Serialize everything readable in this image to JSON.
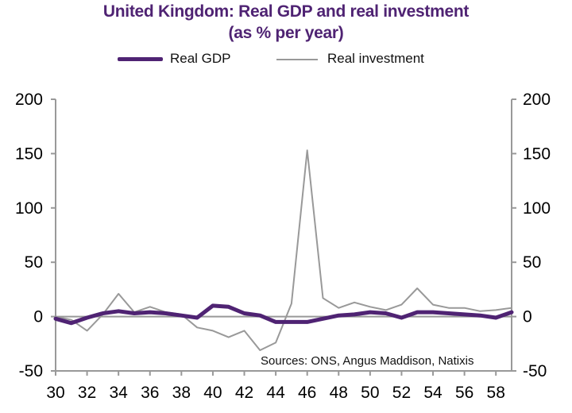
{
  "chart_data": {
    "type": "line",
    "title": "United Kingdom: Real GDP and real investment",
    "subtitle": "(as % per year)",
    "xlabel": "",
    "ylabel": "",
    "x": [
      30,
      31,
      32,
      33,
      34,
      35,
      36,
      37,
      38,
      39,
      40,
      41,
      42,
      43,
      44,
      45,
      46,
      47,
      48,
      49,
      50,
      51,
      52,
      53,
      54,
      55,
      56,
      57,
      58,
      59
    ],
    "x_tick_labels": [
      "30",
      "32",
      "34",
      "36",
      "38",
      "40",
      "42",
      "44",
      "46",
      "48",
      "50",
      "52",
      "54",
      "56",
      "58"
    ],
    "x_ticks": [
      30,
      32,
      34,
      36,
      38,
      40,
      42,
      44,
      46,
      48,
      50,
      52,
      54,
      56,
      58
    ],
    "xlim": [
      30,
      59
    ],
    "ylim": [
      -50,
      200
    ],
    "y_ticks": [
      -50,
      0,
      50,
      100,
      150,
      200
    ],
    "y_tick_labels": [
      "-50",
      "0",
      "50",
      "100",
      "150",
      "200"
    ],
    "right_ylim": [
      -50,
      200
    ],
    "grid": false,
    "legend_position": "top-center",
    "series": [
      {
        "name": "Real GDP",
        "color": "#4f2373",
        "values": [
          -2,
          -6,
          -1,
          3,
          5,
          3,
          4,
          3,
          1,
          -1,
          10,
          9,
          3,
          1,
          -5,
          -5,
          -5,
          -2,
          1,
          2,
          4,
          3,
          -1,
          4,
          4,
          3,
          2,
          1,
          -1,
          4
        ]
      },
      {
        "name": "Real investment",
        "color": "#999999",
        "values": [
          0,
          -3,
          -13,
          2,
          21,
          4,
          9,
          4,
          2,
          -10,
          -13,
          -19,
          -13,
          -31,
          -24,
          12,
          153,
          17,
          8,
          13,
          9,
          6,
          11,
          26,
          11,
          8,
          8,
          5,
          6,
          8
        ]
      }
    ],
    "annotation": "Sources:  ONS, Angus Maddison,  Natixis"
  }
}
